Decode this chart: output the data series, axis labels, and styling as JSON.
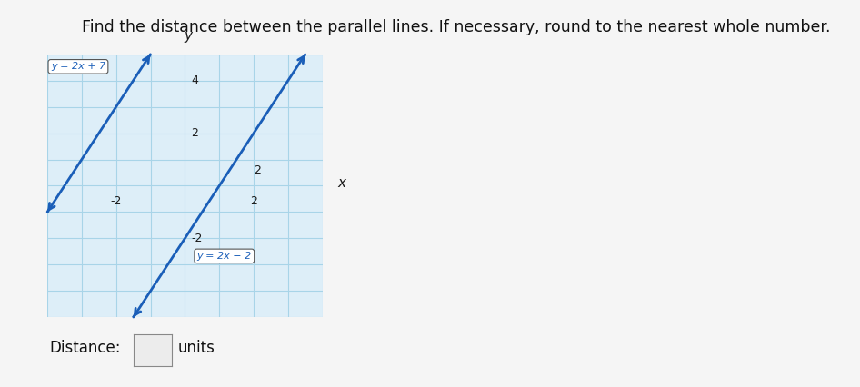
{
  "title": "Find the distance between the parallel lines. If necessary, round to the nearest whole number.",
  "title_fontsize": 12.5,
  "line1_label": "y = 2x + 7",
  "line2_label": "y = 2x − 2",
  "distance_label": "Distance:",
  "units_label": "units",
  "line_color": "#1a5eb8",
  "grid_color": "#a8d4e8",
  "axis_color": "#1a1a1a",
  "background_color": "#f5f5f5",
  "graph_bg": "#ddeef8",
  "xlim": [
    -4,
    4
  ],
  "ylim": [
    -5,
    5
  ],
  "slope": 2,
  "intercept1": 7,
  "intercept2": -2
}
